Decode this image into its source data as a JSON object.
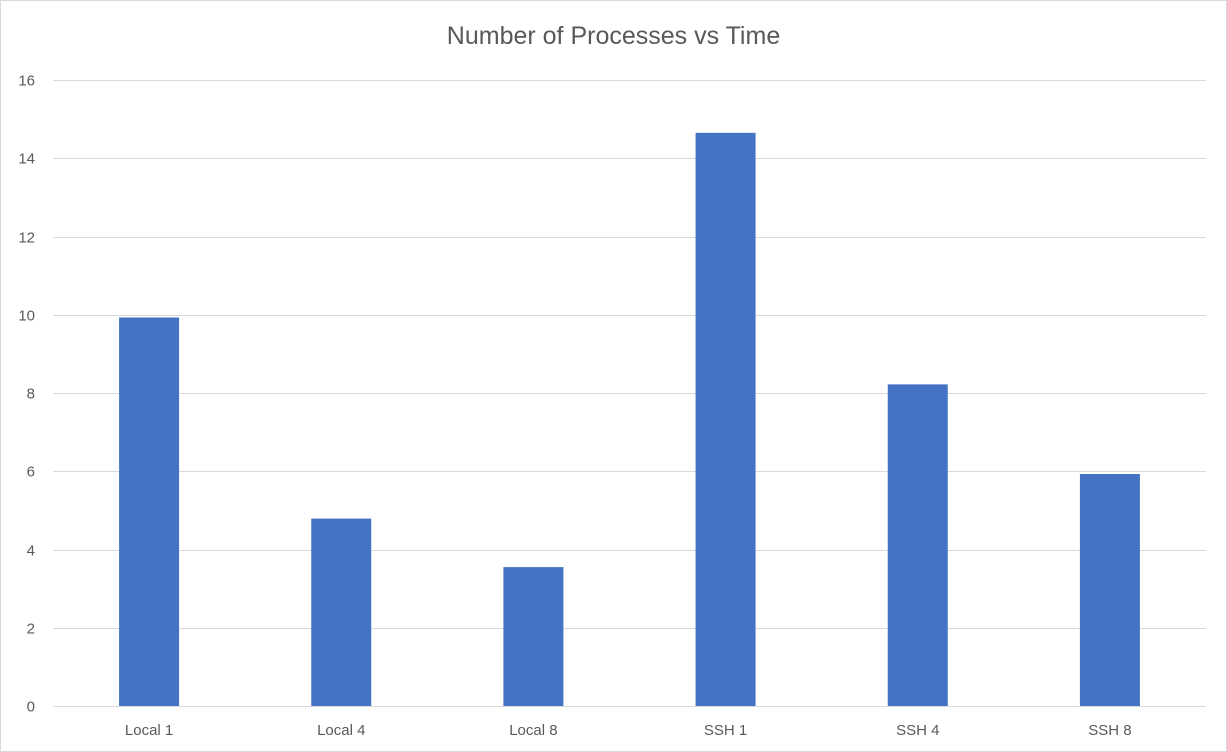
{
  "chart_data": {
    "type": "bar",
    "title": "Number of Processes vs Time",
    "xlabel": "",
    "ylabel": "",
    "categories": [
      "Local 1",
      "Local 4",
      "Local 8",
      "SSH 1",
      "SSH 4",
      "SSH 8"
    ],
    "values": [
      9.93,
      4.79,
      3.55,
      14.65,
      8.22,
      5.93
    ],
    "ylim": [
      0,
      16
    ],
    "yticks": [
      0,
      2,
      4,
      6,
      8,
      10,
      12,
      14,
      16
    ],
    "grid": true,
    "legend": "none",
    "bar_color": "#4472c4"
  }
}
